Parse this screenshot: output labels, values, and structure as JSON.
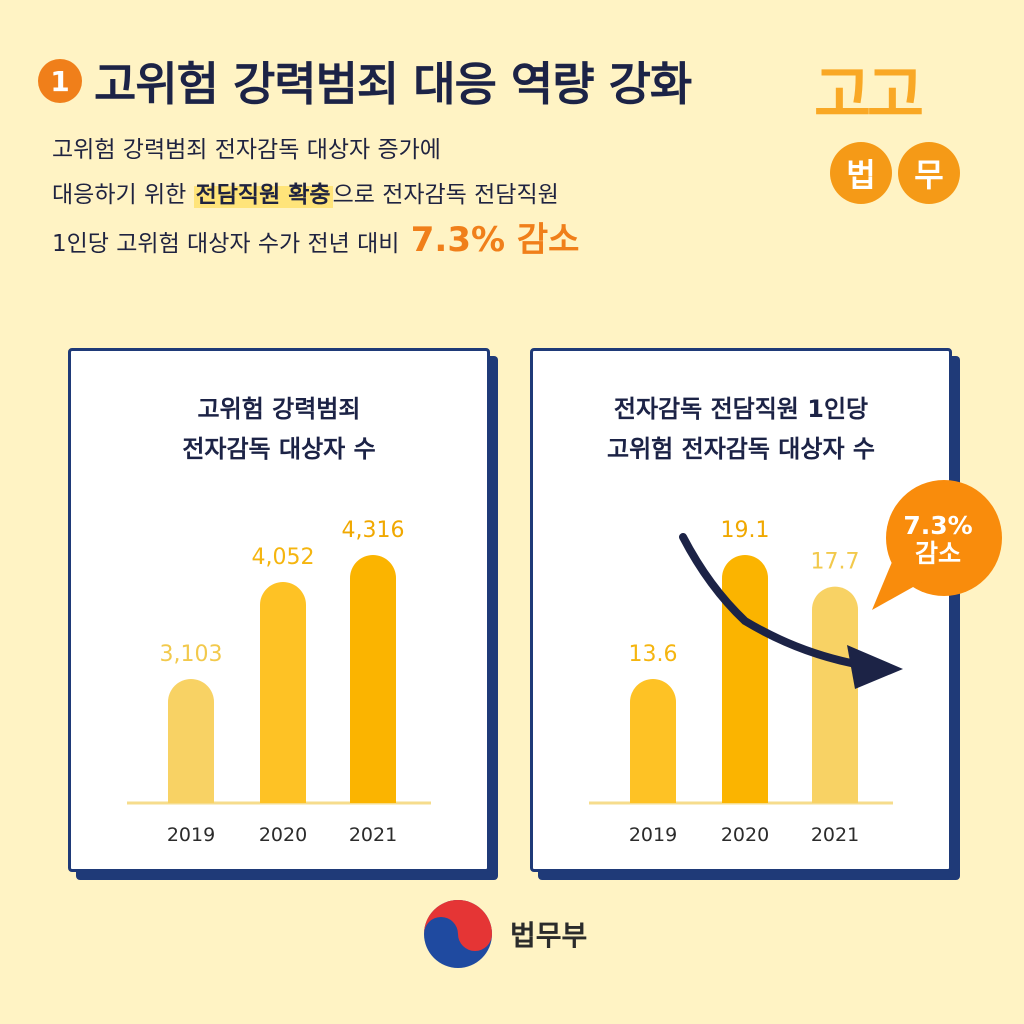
{
  "header": {
    "number": "1",
    "title": "고위험 강력범죄 대응 역량 강화"
  },
  "logo": {
    "top": "고고",
    "left": "법",
    "right": "무"
  },
  "desc": {
    "line1": "고위험 강력범죄 전자감독 대상자 증가에",
    "line2_pre": "대응하기 위한 ",
    "line2_hl": "전담직원 확충",
    "line2_post": "으로 전자감독 전담직원",
    "line3_pre": "1인당 고위험 대상자 수가 전년 대비",
    "line3_big": "7.3% 감소"
  },
  "chart_data": [
    {
      "type": "bar",
      "title_line1": "고위험 강력범죄",
      "title_line2": "전자감독 대상자 수",
      "categories": [
        "2019",
        "2020",
        "2021"
      ],
      "values": [
        3103,
        4052,
        4316
      ],
      "labels": [
        "3,103",
        "4,052",
        "4,316"
      ],
      "colors": [
        "#f8d264",
        "#fec225",
        "#fbb400"
      ],
      "label_colors": [
        "#f2c94c",
        "#f5b50f",
        "#f0a800"
      ]
    },
    {
      "type": "bar",
      "title_line1": "전자감독 전담직원 1인당",
      "title_line2": "고위험 전자감독 대상자 수",
      "categories": [
        "2019",
        "2020",
        "2021"
      ],
      "values": [
        13.6,
        19.1,
        17.7
      ],
      "labels": [
        "13.6",
        "19.1",
        "17.7"
      ],
      "colors": [
        "#fec225",
        "#fbb400",
        "#f8d264"
      ],
      "label_colors": [
        "#f5b50f",
        "#f0a800",
        "#f2c94c"
      ],
      "annotation": "7.3%\n감소"
    }
  ],
  "callout": {
    "line1": "7.3%",
    "line2": "감소"
  },
  "footer": {
    "org": "법무부"
  },
  "colors": {
    "navy": "#1c2346",
    "orange": "#f07f1a",
    "background": "#fff3c4"
  }
}
